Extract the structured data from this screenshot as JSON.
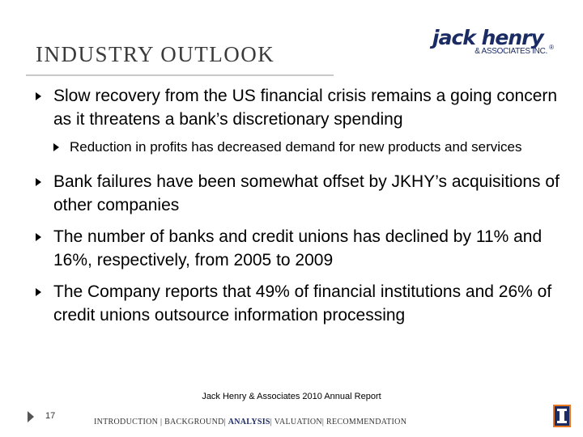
{
  "slide": {
    "title": "INDUSTRY OUTLOOK",
    "logo": {
      "line1": "jack henry",
      "line2": "& ASSOCIATES INC.",
      "reg": "®"
    },
    "bullets": [
      {
        "level": 1,
        "text": "Slow recovery from the US financial crisis remains a going concern as it threatens a bank’s discretionary spending"
      },
      {
        "level": 2,
        "text": "Reduction in profits has decreased demand for new products and services"
      },
      {
        "level": 1,
        "text": "Bank failures have been somewhat offset by JKHY’s acquisitions of other companies"
      },
      {
        "level": 1,
        "text": "The number of banks and credit unions has declined by 11% and 16%, respectively, from 2005 to 2009"
      },
      {
        "level": 1,
        "text": "The Company reports that 49% of financial institutions and 26% of credit unions outsource information processing"
      }
    ],
    "source": "Jack Henry & Associates 2010 Annual Report",
    "page_number": "17",
    "nav": {
      "introduction": "INTRODUCTION",
      "background": "BACKGROUND",
      "analysis": "ANALYSIS",
      "valuation": "VALUATION",
      "recommendation": "RECOMMENDATION"
    }
  }
}
